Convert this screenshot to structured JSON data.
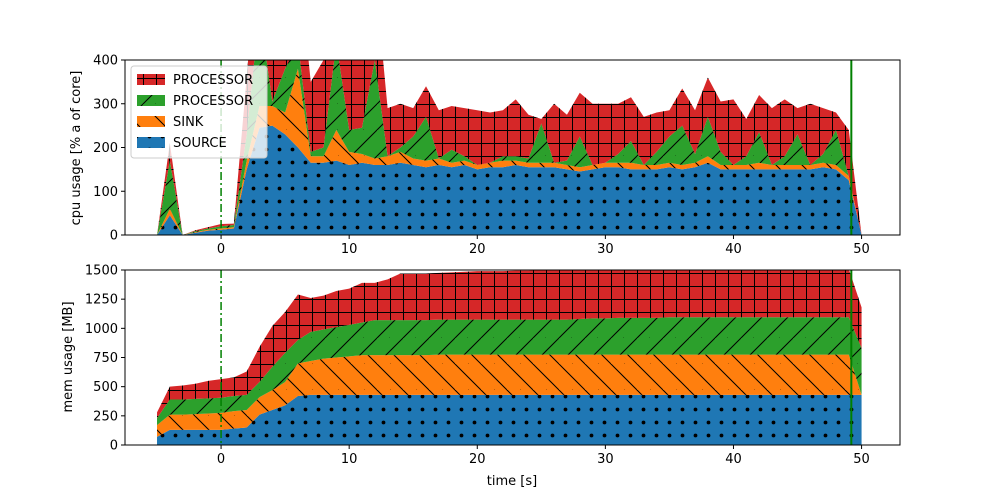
{
  "chart_data": [
    {
      "type": "area",
      "subtype": "stacked",
      "title": "",
      "xlabel": "",
      "ylabel": "cpu usage [% a of core]",
      "xlim": [
        -7.5,
        53
      ],
      "ylim": [
        0,
        400
      ],
      "xticks": [
        0,
        10,
        20,
        30,
        40,
        50
      ],
      "yticks": [
        0,
        100,
        200,
        300,
        400
      ],
      "legend": {
        "placement": "top-left",
        "entries": [
          "PROCESSOR",
          "PROCESSOR",
          "SINK",
          "SOURCE"
        ]
      },
      "markers": [
        {
          "x": 0,
          "style": "dash-dot",
          "color": "#008000"
        },
        {
          "x": 49.2,
          "style": "solid",
          "color": "#008000"
        }
      ],
      "x": [
        -5,
        -4,
        -3,
        -2,
        -1,
        0,
        1,
        2,
        3,
        4,
        5,
        6,
        7,
        8,
        9,
        10,
        11,
        12,
        13,
        14,
        15,
        16,
        17,
        18,
        19,
        20,
        21,
        22,
        23,
        24,
        25,
        26,
        27,
        28,
        29,
        30,
        31,
        32,
        33,
        34,
        35,
        36,
        37,
        38,
        39,
        40,
        41,
        42,
        43,
        44,
        45,
        46,
        47,
        48,
        49,
        50
      ],
      "series": [
        {
          "name": "SOURCE",
          "color": "#1f77b4",
          "hatch": "dots",
          "values": [
            0,
            45,
            0,
            5,
            10,
            12,
            15,
            150,
            245,
            250,
            230,
            200,
            165,
            165,
            170,
            160,
            165,
            160,
            160,
            165,
            160,
            155,
            160,
            155,
            160,
            150,
            155,
            155,
            160,
            155,
            155,
            155,
            150,
            145,
            150,
            155,
            155,
            150,
            150,
            150,
            155,
            150,
            155,
            165,
            150,
            150,
            150,
            150,
            150,
            150,
            150,
            150,
            155,
            150,
            125,
            0
          ]
        },
        {
          "name": "SINK",
          "color": "#ff7f0e",
          "hatch": "backslash",
          "values": [
            0,
            15,
            0,
            2,
            2,
            3,
            3,
            20,
            50,
            45,
            50,
            180,
            15,
            15,
            70,
            30,
            20,
            15,
            20,
            25,
            15,
            15,
            15,
            10,
            10,
            10,
            10,
            15,
            10,
            10,
            10,
            10,
            10,
            10,
            10,
            10,
            10,
            15,
            10,
            10,
            10,
            10,
            10,
            15,
            10,
            10,
            10,
            15,
            10,
            10,
            10,
            10,
            10,
            10,
            10,
            0
          ]
        },
        {
          "name": "PROCESSOR",
          "color": "#2ca02c",
          "hatch": "slash",
          "values": [
            0,
            110,
            0,
            2,
            3,
            5,
            5,
            60,
            220,
            10,
            100,
            60,
            10,
            20,
            200,
            50,
            60,
            225,
            0,
            10,
            50,
            100,
            0,
            30,
            10,
            0,
            0,
            10,
            10,
            10,
            90,
            0,
            10,
            70,
            0,
            0,
            20,
            50,
            0,
            30,
            60,
            90,
            20,
            90,
            30,
            0,
            20,
            70,
            0,
            20,
            70,
            0,
            20,
            80,
            0,
            0
          ]
        },
        {
          "name": "PROCESSOR",
          "color": "#d62728",
          "hatch": "grid",
          "values": [
            0,
            40,
            0,
            2,
            3,
            5,
            3,
            130,
            200,
            210,
            140,
            200,
            160,
            200,
            160,
            180,
            200,
            200,
            110,
            100,
            65,
            70,
            110,
            100,
            110,
            125,
            115,
            105,
            130,
            100,
            10,
            135,
            105,
            100,
            140,
            135,
            115,
            100,
            110,
            90,
            60,
            85,
            100,
            90,
            115,
            150,
            85,
            85,
            130,
            130,
            60,
            140,
            105,
            40,
            105,
            0
          ]
        }
      ]
    },
    {
      "type": "area",
      "subtype": "stacked",
      "title": "",
      "xlabel": "time [s]",
      "ylabel": "mem usage [MB]",
      "xlim": [
        -7.5,
        53
      ],
      "ylim": [
        0,
        1500
      ],
      "xticks": [
        0,
        10,
        20,
        30,
        40,
        50
      ],
      "yticks": [
        0,
        250,
        500,
        750,
        1000,
        1250,
        1500
      ],
      "markers": [
        {
          "x": 0,
          "style": "dash-dot",
          "color": "#008000"
        },
        {
          "x": 49.2,
          "style": "solid",
          "color": "#008000"
        }
      ],
      "x": [
        -5,
        -4,
        -3,
        -2,
        -1,
        0,
        1,
        2,
        3,
        4,
        5,
        6,
        7,
        8,
        9,
        10,
        11,
        12,
        13,
        14,
        15,
        16,
        17,
        18,
        19,
        20,
        21,
        22,
        23,
        24,
        25,
        26,
        27,
        28,
        29,
        30,
        31,
        32,
        33,
        34,
        35,
        36,
        37,
        38,
        39,
        40,
        41,
        42,
        43,
        44,
        45,
        46,
        47,
        48,
        49,
        50
      ],
      "series": [
        {
          "name": "SOURCE",
          "color": "#1f77b4",
          "hatch": "dots",
          "values": [
            70,
            130,
            130,
            130,
            130,
            130,
            140,
            150,
            260,
            300,
            340,
            420,
            430,
            430,
            430,
            430,
            430,
            430,
            430,
            430,
            430,
            430,
            430,
            430,
            430,
            430,
            430,
            430,
            430,
            430,
            430,
            430,
            430,
            430,
            430,
            430,
            430,
            430,
            430,
            430,
            430,
            430,
            430,
            430,
            430,
            430,
            430,
            430,
            430,
            430,
            430,
            430,
            430,
            430,
            430,
            430
          ]
        },
        {
          "name": "SINK",
          "color": "#ff7f0e",
          "hatch": "backslash",
          "values": [
            100,
            130,
            130,
            135,
            140,
            145,
            150,
            150,
            150,
            170,
            200,
            280,
            290,
            310,
            320,
            330,
            340,
            340,
            340,
            340,
            340,
            340,
            345,
            345,
            345,
            345,
            345,
            345,
            345,
            345,
            345,
            345,
            345,
            345,
            345,
            345,
            345,
            345,
            345,
            345,
            345,
            345,
            345,
            345,
            345,
            345,
            345,
            345,
            345,
            345,
            345,
            345,
            345,
            345,
            345,
            0
          ]
        },
        {
          "name": "PROCESSOR",
          "color": "#2ca02c",
          "hatch": "slash",
          "values": [
            60,
            130,
            130,
            130,
            130,
            130,
            130,
            130,
            130,
            200,
            250,
            200,
            250,
            250,
            260,
            270,
            280,
            300,
            300,
            300,
            300,
            300,
            300,
            300,
            300,
            300,
            300,
            300,
            300,
            300,
            300,
            300,
            300,
            305,
            310,
            310,
            315,
            315,
            315,
            315,
            320,
            320,
            320,
            320,
            320,
            320,
            320,
            320,
            320,
            320,
            320,
            320,
            320,
            320,
            320,
            400
          ]
        },
        {
          "name": "PROCESSOR",
          "color": "#d62728",
          "hatch": "grid",
          "values": [
            50,
            110,
            120,
            130,
            150,
            160,
            160,
            200,
            300,
            350,
            350,
            390,
            290,
            290,
            310,
            310,
            340,
            320,
            350,
            400,
            400,
            400,
            400,
            405,
            410,
            415,
            415,
            415,
            420,
            420,
            425,
            425,
            430,
            430,
            425,
            425,
            420,
            420,
            420,
            420,
            415,
            415,
            415,
            415,
            415,
            415,
            415,
            415,
            415,
            415,
            415,
            415,
            415,
            415,
            415,
            350
          ]
        }
      ]
    }
  ]
}
